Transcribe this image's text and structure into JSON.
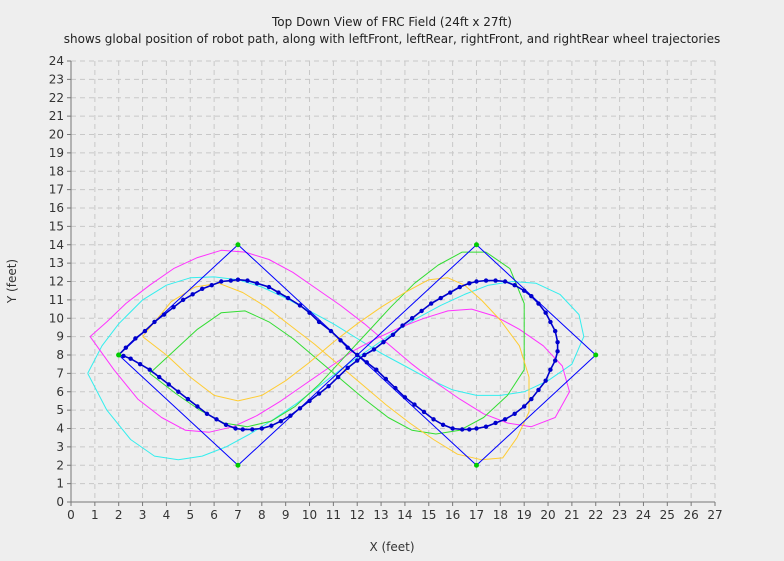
{
  "chart_data": {
    "type": "line",
    "title": "Top Down View of FRC Field (24ft x 27ft)",
    "subtitle": "shows global position of robot path, along with leftFront, leftRear, rightFront, and rightRear wheel trajectories",
    "xlabel": "X (feet)",
    "ylabel": "Y (feet)",
    "xlim": [
      0,
      27
    ],
    "ylim": [
      0,
      24
    ],
    "xticks": [
      0,
      1,
      2,
      3,
      4,
      5,
      6,
      7,
      8,
      9,
      10,
      11,
      12,
      13,
      14,
      15,
      16,
      17,
      18,
      19,
      20,
      21,
      22,
      23,
      24,
      25,
      26,
      27
    ],
    "yticks": [
      0,
      1,
      2,
      3,
      4,
      5,
      6,
      7,
      8,
      9,
      10,
      11,
      12,
      13,
      14,
      15,
      16,
      17,
      18,
      19,
      20,
      21,
      22,
      23,
      24
    ],
    "grid": true,
    "colors": {
      "background": "#eeeeee",
      "grid": "#c8c8c8",
      "waypoints": "#0000ff",
      "waypoint_markers": "#00cc00",
      "path": "#0000cc",
      "cyan": "#33eeee",
      "magenta": "#ff33ff",
      "green": "#33dd33",
      "orange": "#ffcc33"
    },
    "series": [
      {
        "key": "waypoints",
        "x": [
          2,
          7,
          17,
          22,
          17,
          7,
          2
        ],
        "y": [
          8,
          14,
          2,
          8,
          14,
          2,
          8
        ]
      },
      {
        "key": "path",
        "x": [
          2.0,
          2.3,
          2.7,
          3.1,
          3.5,
          3.9,
          4.3,
          4.7,
          5.1,
          5.5,
          5.9,
          6.3,
          6.7,
          7.0,
          7.4,
          7.8,
          8.3,
          8.7,
          9.1,
          9.6,
          10.0,
          10.4,
          10.9,
          11.3,
          11.6,
          12.0,
          12.4,
          12.8,
          13.2,
          13.6,
          14.0,
          14.4,
          14.8,
          15.2,
          15.6,
          16.0,
          16.4,
          16.7,
          17.0,
          17.4,
          17.8,
          18.2,
          18.6,
          19.0,
          19.3,
          19.6,
          19.9,
          20.1,
          20.3,
          20.4,
          20.4,
          20.3,
          20.1,
          19.9,
          19.6,
          19.3,
          19.0,
          18.6,
          18.2,
          17.8,
          17.4,
          17.0,
          16.7,
          16.3,
          15.9,
          15.5,
          15.1,
          14.7,
          14.3,
          13.9,
          13.5,
          13.1,
          12.7,
          12.3,
          12.0,
          11.6,
          11.2,
          10.8,
          10.4,
          10.0,
          9.6,
          9.2,
          8.8,
          8.4,
          8.0,
          7.6,
          7.2,
          6.9,
          6.5,
          6.1,
          5.7,
          5.3,
          4.9,
          4.5,
          4.1,
          3.7,
          3.3,
          2.9,
          2.5,
          2.2,
          2.0
        ],
        "y": [
          8.0,
          8.4,
          8.9,
          9.3,
          9.8,
          10.2,
          10.6,
          11.0,
          11.3,
          11.6,
          11.8,
          12.0,
          12.05,
          12.1,
          12.05,
          11.9,
          11.7,
          11.4,
          11.1,
          10.7,
          10.3,
          9.8,
          9.3,
          8.8,
          8.4,
          8.0,
          7.6,
          7.2,
          6.7,
          6.2,
          5.7,
          5.3,
          4.9,
          4.5,
          4.2,
          4.0,
          3.95,
          3.95,
          4.0,
          4.1,
          4.3,
          4.5,
          4.8,
          5.2,
          5.6,
          6.1,
          6.6,
          7.2,
          7.7,
          8.2,
          8.7,
          9.3,
          9.8,
          10.3,
          10.8,
          11.2,
          11.5,
          11.8,
          12.0,
          12.05,
          12.05,
          12.0,
          11.9,
          11.7,
          11.4,
          11.1,
          10.8,
          10.4,
          10.0,
          9.6,
          9.1,
          8.7,
          8.3,
          8.0,
          7.7,
          7.3,
          6.8,
          6.3,
          5.9,
          5.5,
          5.1,
          4.7,
          4.4,
          4.15,
          4.0,
          3.95,
          3.95,
          4.0,
          4.2,
          4.5,
          4.8,
          5.2,
          5.6,
          6.0,
          6.4,
          6.8,
          7.2,
          7.5,
          7.8,
          7.95,
          8.0
        ]
      },
      {
        "key": "cyan",
        "x": [
          0.7,
          1.3,
          2.0,
          3.0,
          4.0,
          5.0,
          6.0,
          7.0,
          8.0,
          9.0,
          10.0,
          11.0,
          12.0,
          13.0,
          14.0,
          15.0,
          16.0,
          17.0,
          18.0,
          19.0,
          20.0,
          21.0,
          21.5,
          21.3,
          20.5,
          19.5,
          18.5,
          17.5,
          16.5,
          15.5,
          14.5,
          13.5,
          12.5,
          11.5,
          10.5,
          9.5,
          8.5,
          7.5,
          6.5,
          5.5,
          4.5,
          3.5,
          2.5,
          1.5,
          0.7
        ],
        "y": [
          7.0,
          8.5,
          9.7,
          11.0,
          11.8,
          12.2,
          12.25,
          12.1,
          11.7,
          11.1,
          10.4,
          9.7,
          8.9,
          8.1,
          7.4,
          6.7,
          6.1,
          5.8,
          5.8,
          6.0,
          6.6,
          7.5,
          9.0,
          10.2,
          11.3,
          11.9,
          12.0,
          11.8,
          11.3,
          10.7,
          10.0,
          9.2,
          8.3,
          7.4,
          6.4,
          5.4,
          4.5,
          3.7,
          3.0,
          2.5,
          2.3,
          2.5,
          3.4,
          5.0,
          7.0
        ]
      },
      {
        "key": "magenta",
        "x": [
          0.8,
          1.5,
          2.3,
          3.3,
          4.3,
          5.3,
          6.3,
          7.3,
          8.3,
          9.3,
          10.3,
          11.3,
          12.3,
          13.3,
          14.3,
          15.3,
          16.3,
          17.3,
          18.3,
          19.3,
          20.3,
          20.9,
          20.6,
          19.8,
          18.8,
          17.8,
          16.8,
          15.8,
          14.8,
          13.8,
          12.8,
          11.8,
          10.8,
          9.8,
          8.8,
          7.8,
          6.8,
          5.8,
          4.8,
          3.8,
          2.8,
          1.8,
          0.8
        ],
        "y": [
          9.0,
          9.8,
          10.8,
          11.8,
          12.7,
          13.3,
          13.7,
          13.6,
          13.2,
          12.5,
          11.6,
          10.7,
          9.7,
          8.6,
          7.5,
          6.5,
          5.6,
          4.8,
          4.3,
          4.1,
          4.6,
          6.0,
          7.4,
          8.5,
          9.4,
          10.1,
          10.5,
          10.4,
          10.0,
          9.5,
          8.9,
          8.2,
          7.3,
          6.4,
          5.5,
          4.7,
          4.1,
          3.8,
          3.9,
          4.6,
          5.6,
          7.2,
          9.0
        ]
      },
      {
        "key": "green",
        "x": [
          3.3,
          4.3,
          5.3,
          6.3,
          7.3,
          8.3,
          9.3,
          10.3,
          11.3,
          12.3,
          13.3,
          14.3,
          15.3,
          16.3,
          17.3,
          18.3,
          19.0,
          19.0,
          18.4,
          17.4,
          16.4,
          15.4,
          14.4,
          13.4,
          12.4,
          11.4,
          10.4,
          9.4,
          8.4,
          7.4,
          6.4,
          5.4,
          4.4,
          3.3
        ],
        "y": [
          7.0,
          8.2,
          9.4,
          10.3,
          10.4,
          9.8,
          8.9,
          7.8,
          6.7,
          5.6,
          4.6,
          3.9,
          3.7,
          3.9,
          4.6,
          5.8,
          7.2,
          10.8,
          12.7,
          13.6,
          13.6,
          12.9,
          11.9,
          10.6,
          9.2,
          7.8,
          6.4,
          5.2,
          4.4,
          4.1,
          4.3,
          5.0,
          5.9,
          7.0
        ]
      },
      {
        "key": "orange",
        "x": [
          3.0,
          4.0,
          5.0,
          6.0,
          7.0,
          8.0,
          9.0,
          10.0,
          11.0,
          12.0,
          13.0,
          14.0,
          15.0,
          15.8,
          16.5,
          17.2,
          18.0,
          18.8,
          19.2,
          19.2,
          18.7,
          18.1,
          17.2,
          16.2,
          15.2,
          14.2,
          13.2,
          12.2,
          11.2,
          10.2,
          9.2,
          8.2,
          7.2,
          6.2,
          5.2,
          4.2,
          3.0
        ],
        "y": [
          9.0,
          8.0,
          6.8,
          5.8,
          5.5,
          5.8,
          6.6,
          7.6,
          8.7,
          9.7,
          10.6,
          11.4,
          12.1,
          12.2,
          11.8,
          11.0,
          9.9,
          8.5,
          6.8,
          4.9,
          3.5,
          2.4,
          2.3,
          2.6,
          3.4,
          4.3,
          5.3,
          6.4,
          7.5,
          8.6,
          9.6,
          10.6,
          11.4,
          11.9,
          11.7,
          10.9,
          9.0
        ]
      }
    ]
  }
}
